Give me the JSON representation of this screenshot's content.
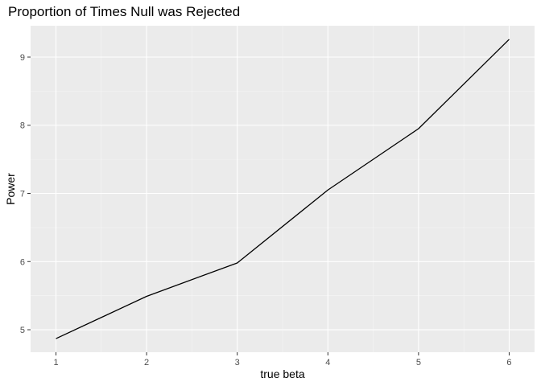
{
  "chart_data": {
    "type": "line",
    "title": "Proportion of Times Null was Rejected",
    "xlabel": "true beta",
    "ylabel": "Power",
    "x": [
      1,
      2,
      3,
      4,
      5,
      6
    ],
    "series": [
      {
        "values": [
          4.87,
          5.49,
          5.98,
          7.05,
          7.95,
          9.26
        ]
      }
    ],
    "xlim": [
      0.72,
      6.28
    ],
    "ylim": [
      4.67,
      9.46
    ],
    "x_ticks": [
      1,
      2,
      3,
      4,
      5,
      6
    ],
    "y_ticks": [
      5,
      6,
      7,
      8,
      9
    ],
    "x_tick_labels": [
      "1",
      "2",
      "3",
      "4",
      "5",
      "6"
    ],
    "y_tick_labels": [
      "5",
      "6",
      "7",
      "8",
      "9"
    ],
    "grid": true,
    "legend": "none",
    "colors": {
      "panel_background": "#ebebeb",
      "grid_major": "#ffffff",
      "grid_minor": "#f5f5f5",
      "line": "#000000",
      "tick_mark": "#333333",
      "tick_label": "#4d4d4d"
    }
  }
}
